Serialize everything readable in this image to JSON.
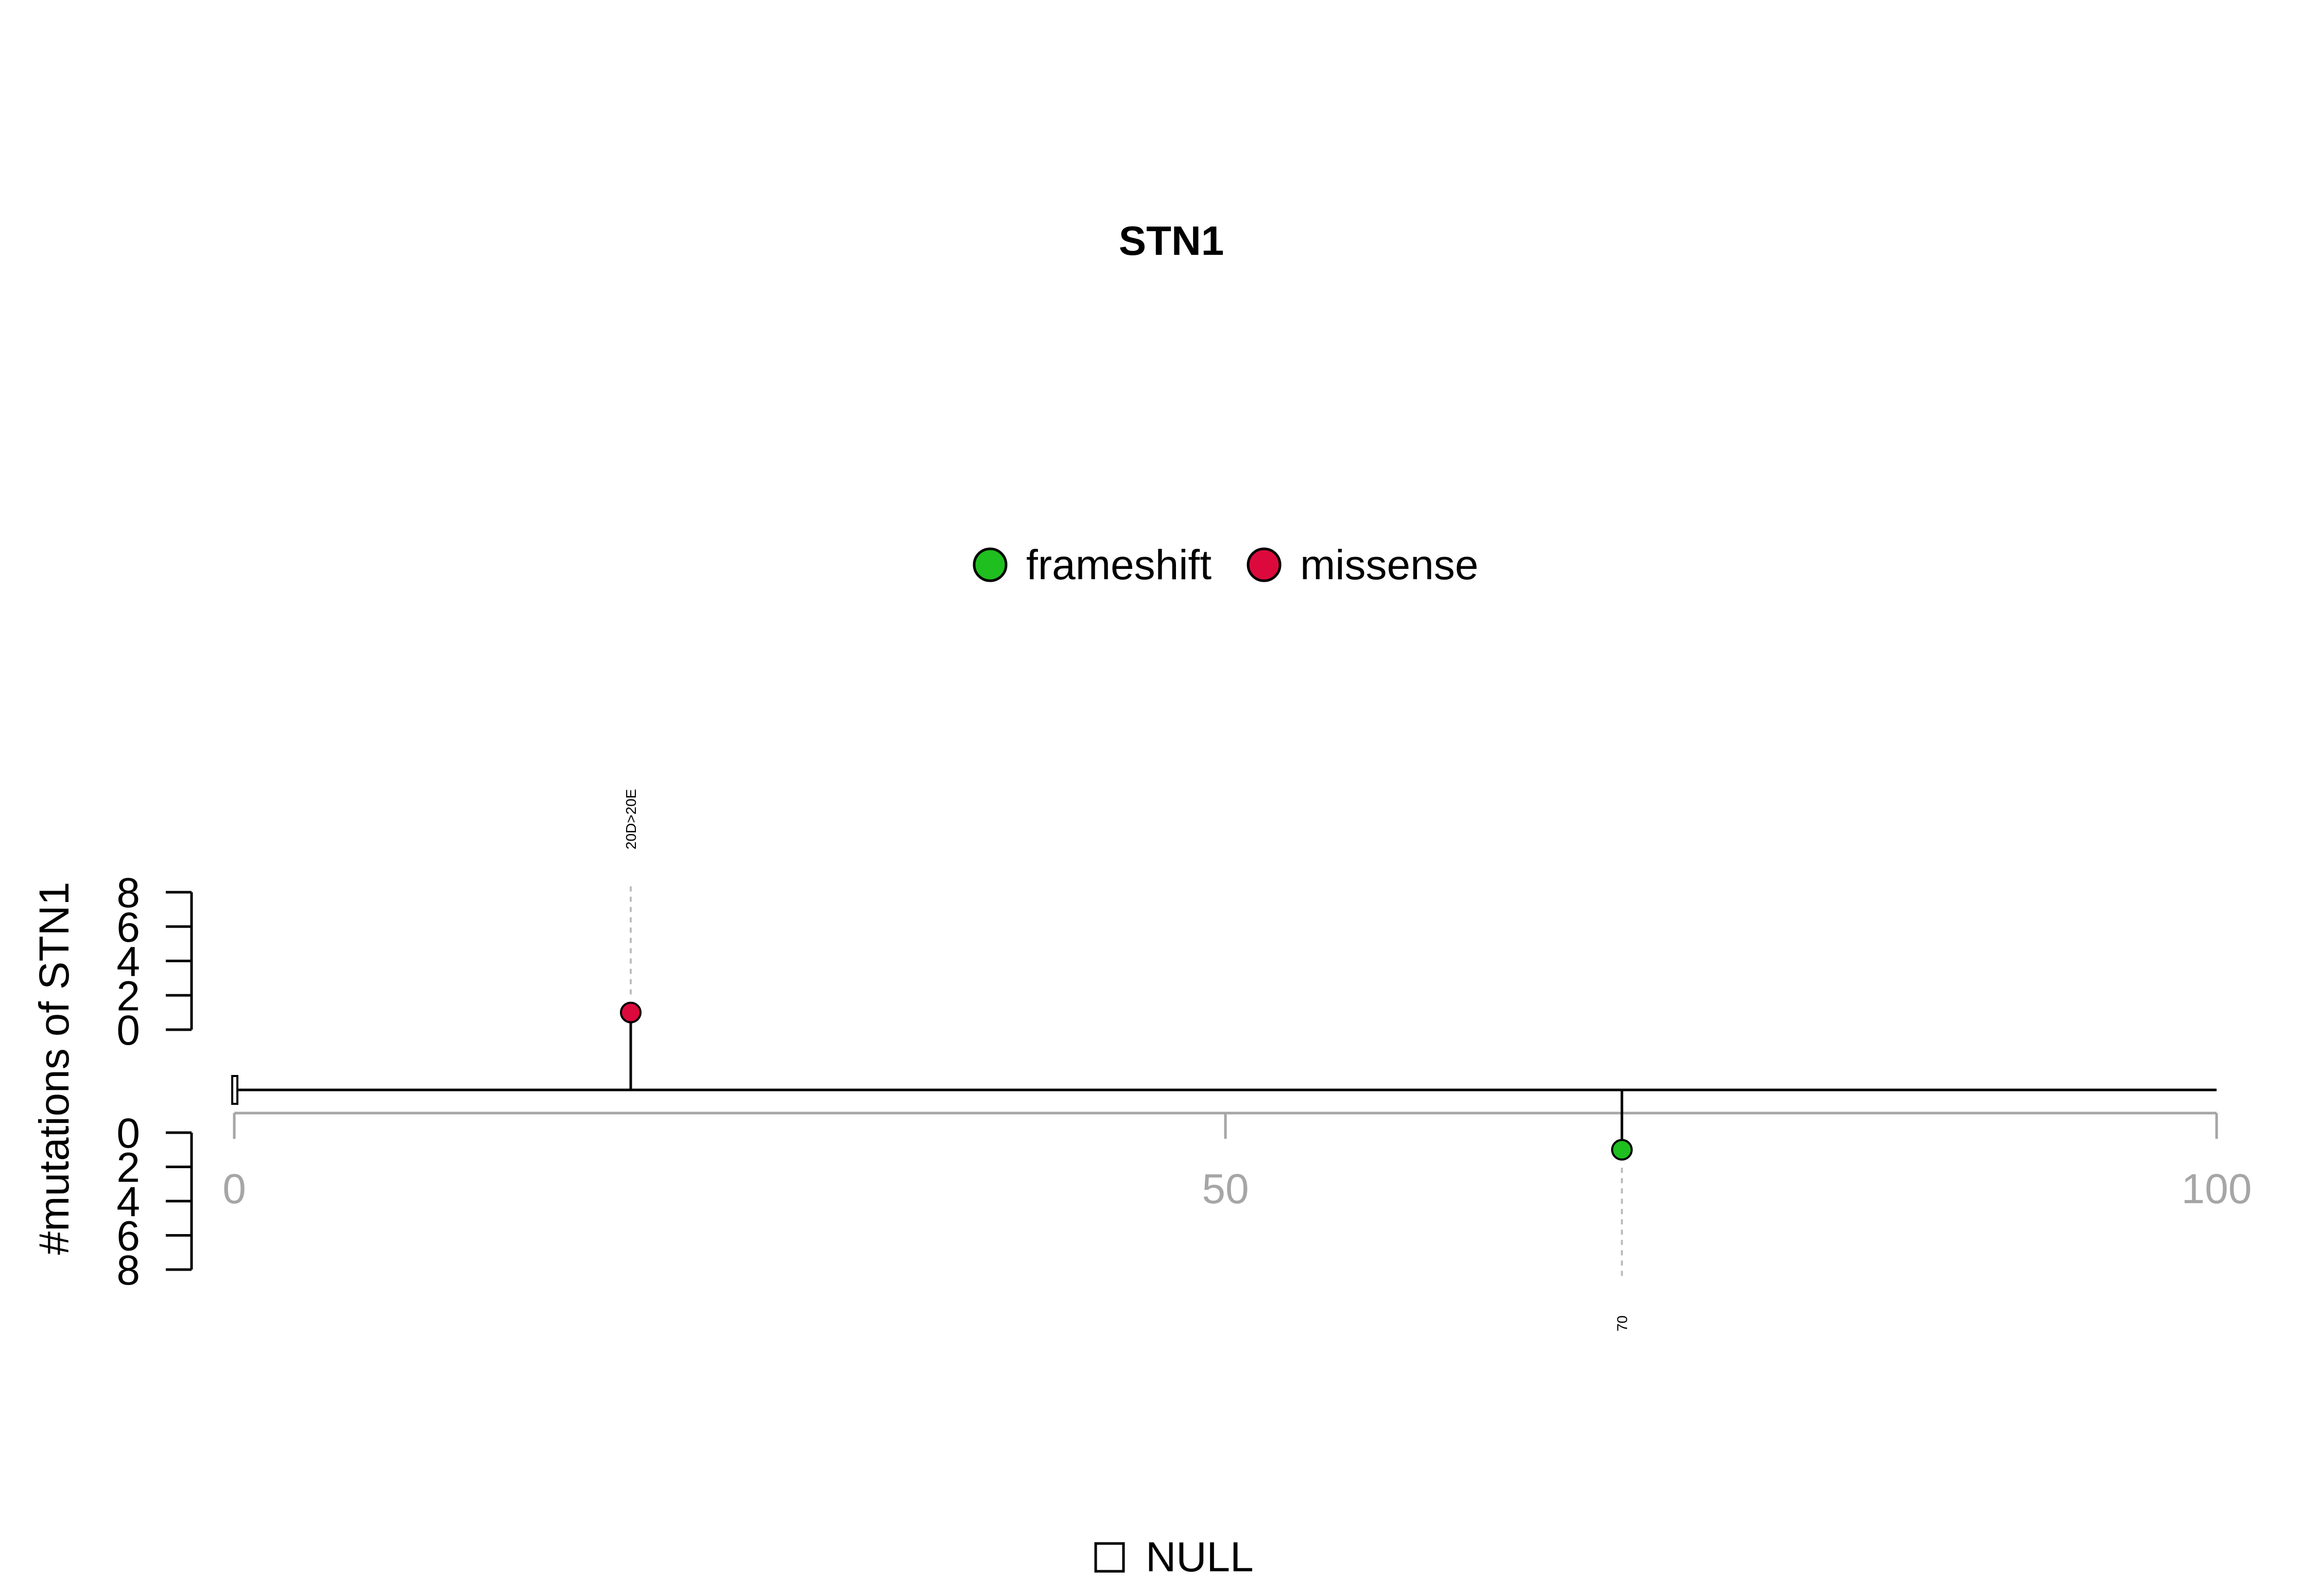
{
  "chart_data": {
    "type": "lollipop",
    "title": "STN1",
    "ylabel": "#mutations of STN1",
    "legend": [
      {
        "label": "frameshift",
        "color": "#1fbf1f"
      },
      {
        "label": "missense",
        "color": "#dc0a3c"
      }
    ],
    "domain_legend": [
      {
        "label": "NULL",
        "fill": "#ffffff"
      }
    ],
    "x_axis": {
      "ticks": [
        "0",
        "50",
        "100"
      ],
      "tick_values": [
        0,
        50,
        100
      ],
      "range": [
        0,
        100
      ]
    },
    "y_axis_top": {
      "ticks": [
        "0",
        "2",
        "4",
        "6",
        "8"
      ],
      "tick_values": [
        0,
        2,
        4,
        6,
        8
      ],
      "range": [
        0,
        8
      ]
    },
    "y_axis_bottom": {
      "ticks": [
        "0",
        "2",
        "4",
        "6",
        "8"
      ],
      "tick_values": [
        0,
        2,
        4,
        6,
        8
      ],
      "range": [
        0,
        8
      ]
    },
    "protein_length": 100,
    "mutations": [
      {
        "position": 20,
        "count": 1,
        "label": "20D>20E",
        "type": "missense",
        "side": "top"
      },
      {
        "position": 70,
        "count": 1,
        "label": "70",
        "type": "frameshift",
        "side": "bottom"
      }
    ]
  }
}
